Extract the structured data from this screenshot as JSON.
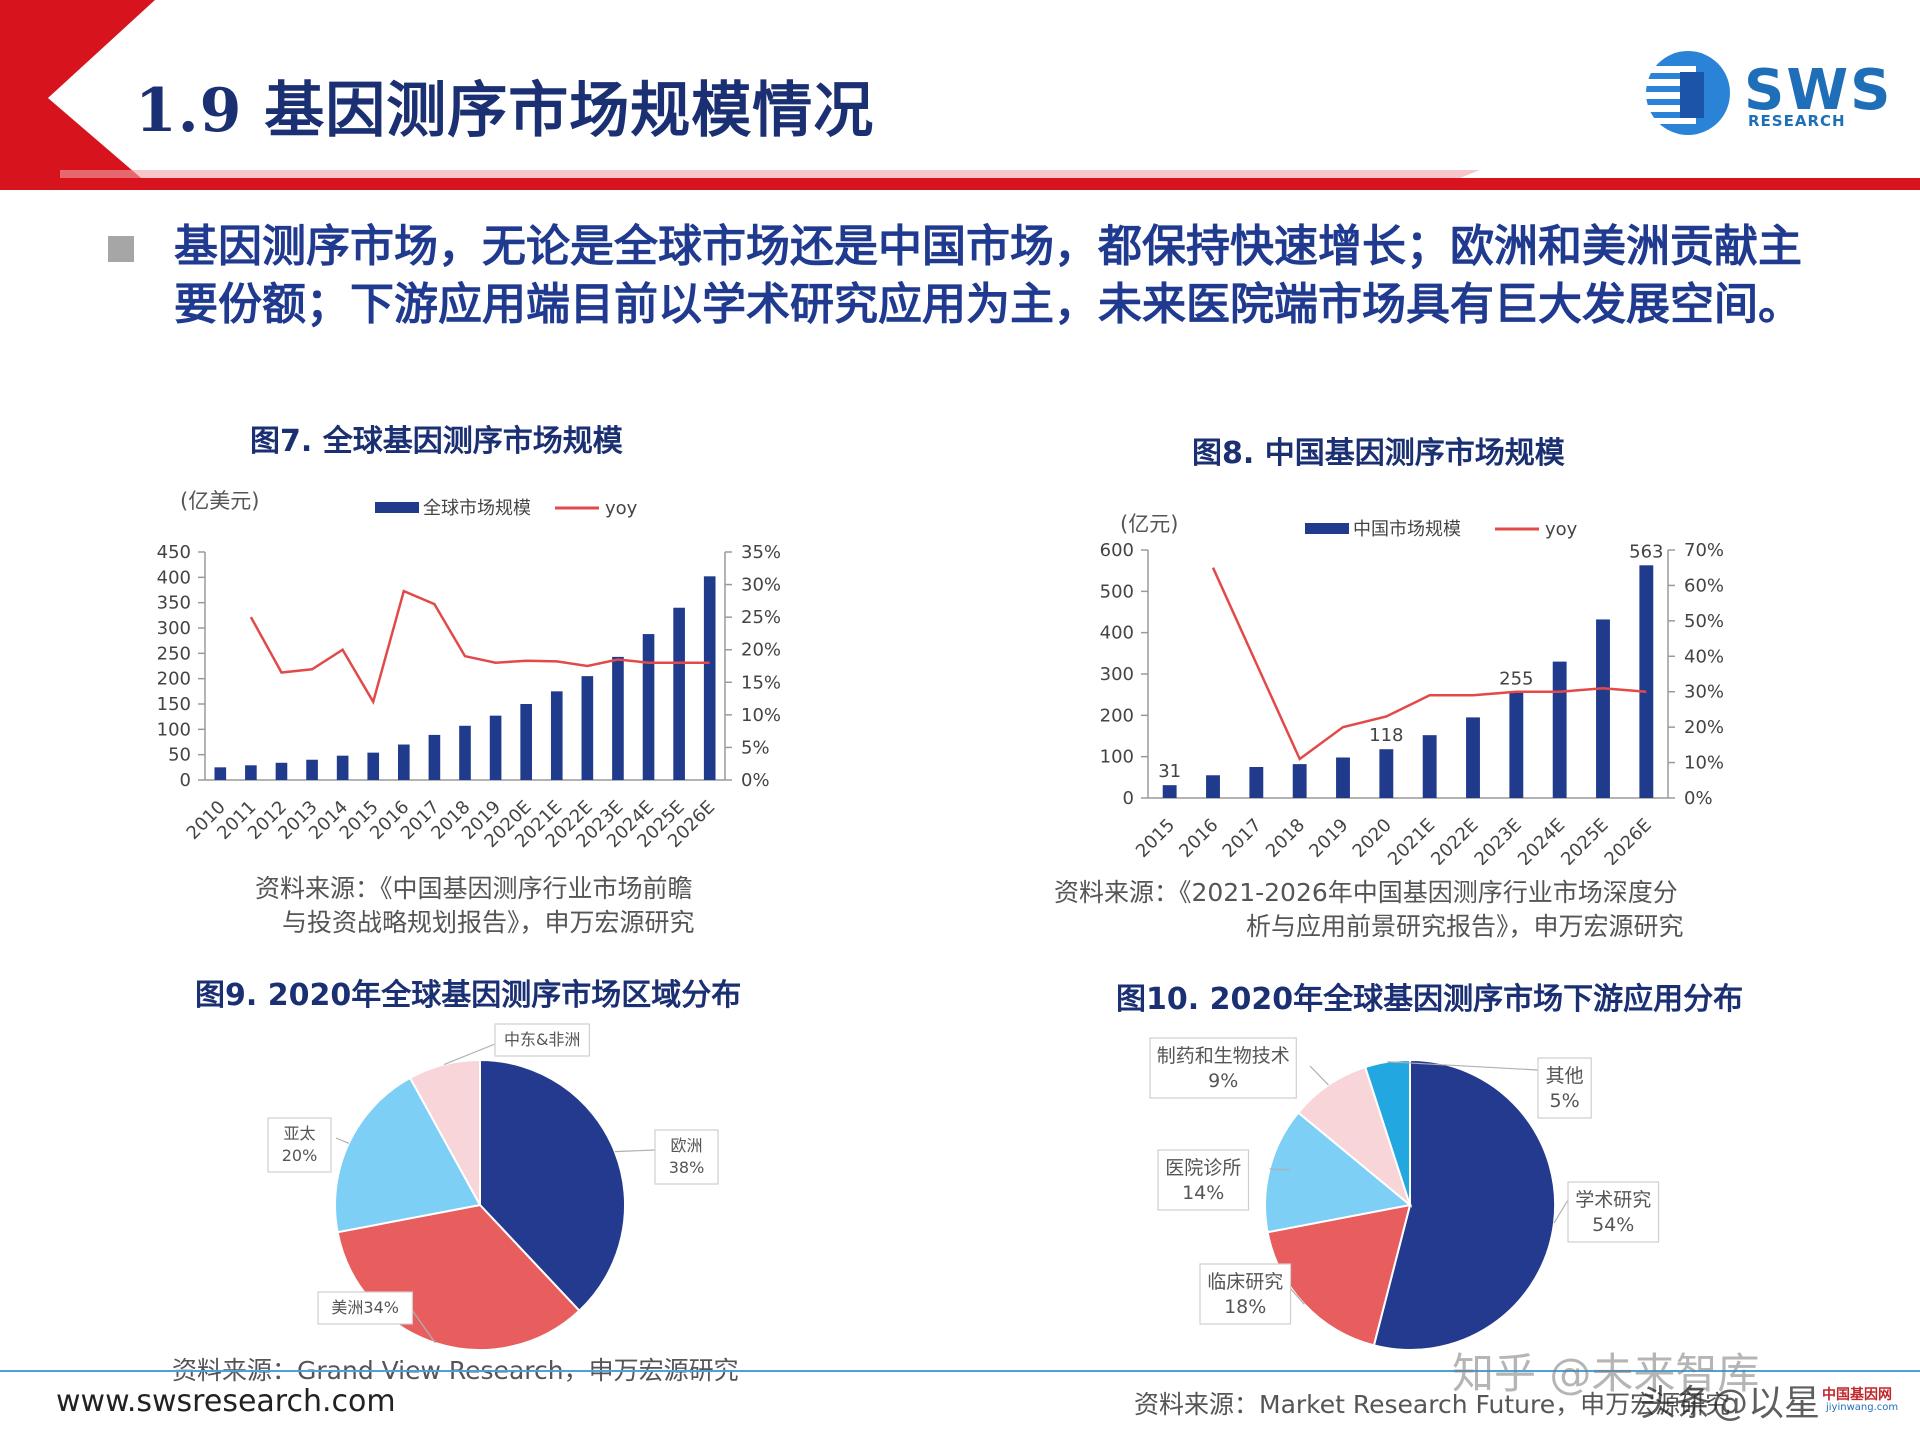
{
  "header": {
    "title": "1.9 基因测序市场规模情况",
    "logo_text": "SWS",
    "logo_sub": "RESEARCH"
  },
  "bullet": "基因测序市场，无论是全球市场还是中国市场，都保持快速增长；欧洲和美洲贡献主要份额；下游应用端目前以学术研究应用为主，未来医院端市场具有巨大发展空间。",
  "footer": {
    "url": "www.swsresearch.com",
    "watermark": "知乎 @未来智库",
    "watermark2": "头条@以星",
    "mini_logo": "中国基因网",
    "mini_logo_url": "jiyinwang.com"
  },
  "colors": {
    "brand_red": "#d7141e",
    "bar_navy": "#203a8c",
    "line_red": "#e24a4a",
    "pie_blue": "#243a8f",
    "pie_red": "#e85e5e",
    "pie_lightblue": "#7dcff5",
    "pie_pink": "#f7d5d8",
    "pie_cyan": "#22a7e0"
  },
  "chart_data": [
    {
      "type": "bar",
      "title": "图7. 全球基因测序市场规模",
      "unit_label": "(亿美元)",
      "categories": [
        "2010",
        "2011",
        "2012",
        "2013",
        "2014",
        "2015",
        "2016",
        "2017",
        "2018",
        "2019",
        "2020E",
        "2021E",
        "2022E",
        "2023E",
        "2024E",
        "2025E",
        "2026E"
      ],
      "series": [
        {
          "name": "全球市场规模",
          "type": "bar",
          "axis": "left",
          "values": [
            25,
            29,
            34,
            40,
            48,
            54,
            70,
            89,
            107,
            127,
            150,
            175,
            205,
            243,
            288,
            340,
            402
          ]
        },
        {
          "name": "yoy",
          "type": "line",
          "axis": "right",
          "values": [
            null,
            25,
            16.5,
            17,
            20,
            12,
            29,
            27,
            19,
            18,
            18.3,
            18.2,
            17.5,
            18.5,
            18,
            18,
            18
          ]
        }
      ],
      "ylim": [
        0,
        450
      ],
      "yticks": [
        0,
        50,
        100,
        150,
        200,
        250,
        300,
        350,
        400,
        450
      ],
      "y2lim": [
        0,
        35
      ],
      "y2ticks": [
        "0%",
        "5%",
        "10%",
        "15%",
        "20%",
        "25%",
        "30%",
        "35%"
      ],
      "legend_position": "top",
      "source_line1": "资料来源：《中国基因测序行业市场前瞻",
      "source_line2": "与投资战略规划报告》，申万宏源研究"
    },
    {
      "type": "bar",
      "title": "图8. 中国基因测序市场规模",
      "unit_label": "(亿元)",
      "categories": [
        "2015",
        "2016",
        "2017",
        "2018",
        "2019",
        "2020",
        "2021E",
        "2022E",
        "2023E",
        "2024E",
        "2025E",
        "2026E"
      ],
      "series": [
        {
          "name": "中国市场规模",
          "type": "bar",
          "axis": "left",
          "values": [
            31,
            55,
            75,
            82,
            98,
            118,
            152,
            195,
            255,
            330,
            432,
            563
          ]
        },
        {
          "name": "yoy",
          "type": "line",
          "axis": "right",
          "values": [
            null,
            65,
            38,
            11,
            20,
            23,
            29,
            29,
            30,
            30,
            31,
            30
          ]
        }
      ],
      "data_labels": [
        {
          "index": 0,
          "text": "31"
        },
        {
          "index": 5,
          "text": "118"
        },
        {
          "index": 8,
          "text": "255"
        },
        {
          "index": 11,
          "text": "563"
        }
      ],
      "ylim": [
        0,
        600
      ],
      "yticks": [
        0,
        100,
        200,
        300,
        400,
        500,
        600
      ],
      "y2lim": [
        0,
        70
      ],
      "y2ticks": [
        "0%",
        "10%",
        "20%",
        "30%",
        "40%",
        "50%",
        "60%",
        "70%"
      ],
      "legend_position": "top",
      "source_line1": "资料来源：《2021-2026年中国基因测序行业市场深度分",
      "source_line2": "析与应用前景研究报告》，申万宏源研究"
    },
    {
      "type": "pie",
      "title": "图9. 2020年全球基因测序市场区域分布",
      "slices": [
        {
          "label": "欧洲",
          "value": 38,
          "text": "38%",
          "color": "#243a8f"
        },
        {
          "label": "美洲",
          "value": 34,
          "text": "美洲34%",
          "color": "#e85e5e"
        },
        {
          "label": "亚太",
          "value": 20,
          "text": "20%",
          "color": "#7dcff5"
        },
        {
          "label": "中东&非洲",
          "value": 8,
          "text": "",
          "color": "#f7d5d8"
        }
      ],
      "source_line1": "资料来源：Grand View Research，申万宏源研究"
    },
    {
      "type": "pie",
      "title": "图10. 2020年全球基因测序市场下游应用分布",
      "slices": [
        {
          "label": "学术研究",
          "value": 54,
          "text": "54%",
          "color": "#243a8f"
        },
        {
          "label": "临床研究",
          "value": 18,
          "text": "18%",
          "color": "#e85e5e"
        },
        {
          "label": "医院诊所",
          "value": 14,
          "text": "14%",
          "color": "#7dcff5"
        },
        {
          "label": "制药和生物技术",
          "value": 9,
          "text": "9%",
          "color": "#f7d5d8"
        },
        {
          "label": "其他",
          "value": 5,
          "text": "5%",
          "color": "#22a7e0"
        }
      ],
      "source_line1": "资料来源：Market Research Future，申万宏源研究"
    }
  ]
}
